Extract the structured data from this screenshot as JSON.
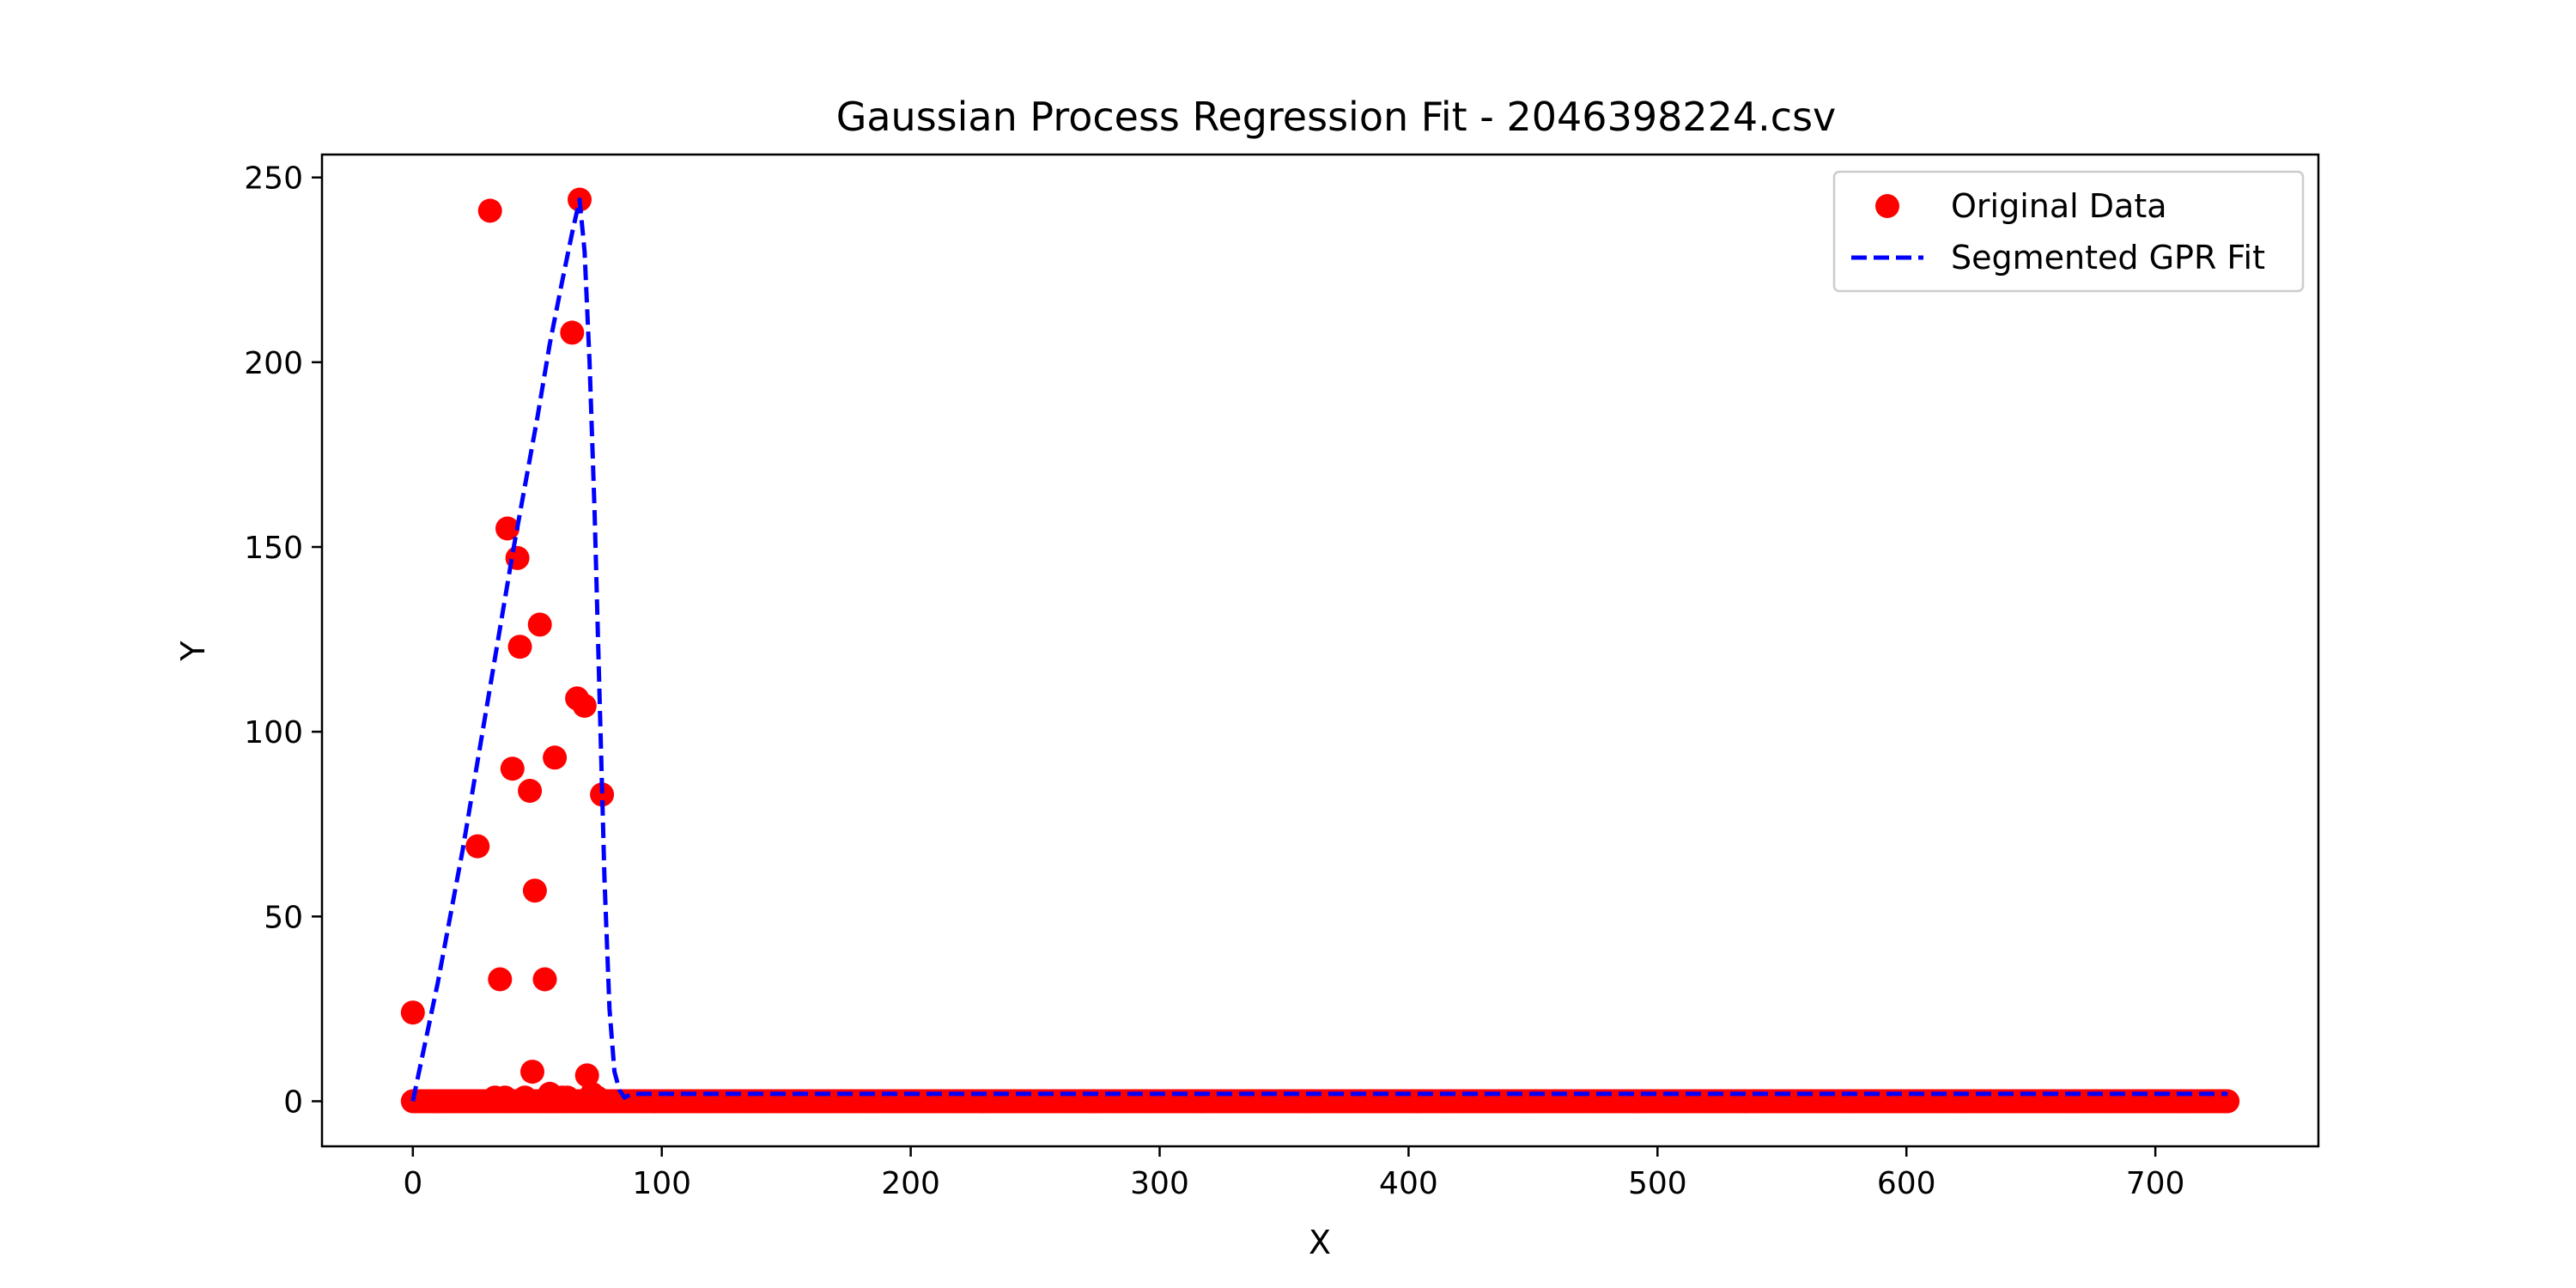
{
  "chart_data": {
    "type": "scatter",
    "title": "Gaussian Process Regression Fit - 2046398224.csv",
    "xlabel": "X",
    "ylabel": "Y",
    "xlim": [
      -36.5,
      765.5
    ],
    "ylim": [
      -12.2,
      256.2
    ],
    "xticks": [
      0,
      100,
      200,
      300,
      400,
      500,
      600,
      700
    ],
    "yticks": [
      0,
      50,
      100,
      150,
      200,
      250
    ],
    "grid": false,
    "legend_position": "top-right",
    "series": [
      {
        "name": "Original Data",
        "kind": "scatter",
        "color": "#ff0000",
        "points": [
          [
            0,
            24
          ],
          [
            31,
            241
          ],
          [
            26,
            69
          ],
          [
            35,
            33
          ],
          [
            38,
            155
          ],
          [
            40,
            90
          ],
          [
            42,
            147
          ],
          [
            43,
            123
          ],
          [
            47,
            84
          ],
          [
            48,
            8
          ],
          [
            49,
            57
          ],
          [
            51,
            129
          ],
          [
            53,
            33
          ],
          [
            55,
            2
          ],
          [
            57,
            93
          ],
          [
            64,
            208
          ],
          [
            66,
            109
          ],
          [
            67,
            244
          ],
          [
            69,
            107
          ],
          [
            70,
            7
          ],
          [
            72,
            2
          ],
          [
            76,
            83
          ],
          [
            33,
            1
          ],
          [
            37,
            1
          ],
          [
            45,
            1
          ],
          [
            60,
            1
          ],
          [
            62,
            1
          ],
          [
            74,
            1
          ]
        ],
        "zero_run": {
          "from": 0,
          "to": 729,
          "step": 1,
          "y": 0
        }
      },
      {
        "name": "Segmented GPR Fit",
        "kind": "line",
        "style": "dashed",
        "color": "#0000ff",
        "points": [
          [
            0,
            0
          ],
          [
            10,
            32
          ],
          [
            20,
            68
          ],
          [
            30,
            108
          ],
          [
            40,
            148
          ],
          [
            50,
            185
          ],
          [
            55,
            205
          ],
          [
            60,
            222
          ],
          [
            64,
            235
          ],
          [
            67,
            244
          ],
          [
            69,
            230
          ],
          [
            71,
            200
          ],
          [
            73,
            160
          ],
          [
            75,
            110
          ],
          [
            77,
            60
          ],
          [
            79,
            25
          ],
          [
            81,
            8
          ],
          [
            83,
            3
          ],
          [
            85,
            1
          ],
          [
            88,
            2
          ],
          [
            100,
            2
          ],
          [
            200,
            2
          ],
          [
            300,
            2
          ],
          [
            400,
            2
          ],
          [
            500,
            2
          ],
          [
            600,
            2
          ],
          [
            700,
            2
          ],
          [
            729,
            2
          ]
        ]
      }
    ]
  }
}
